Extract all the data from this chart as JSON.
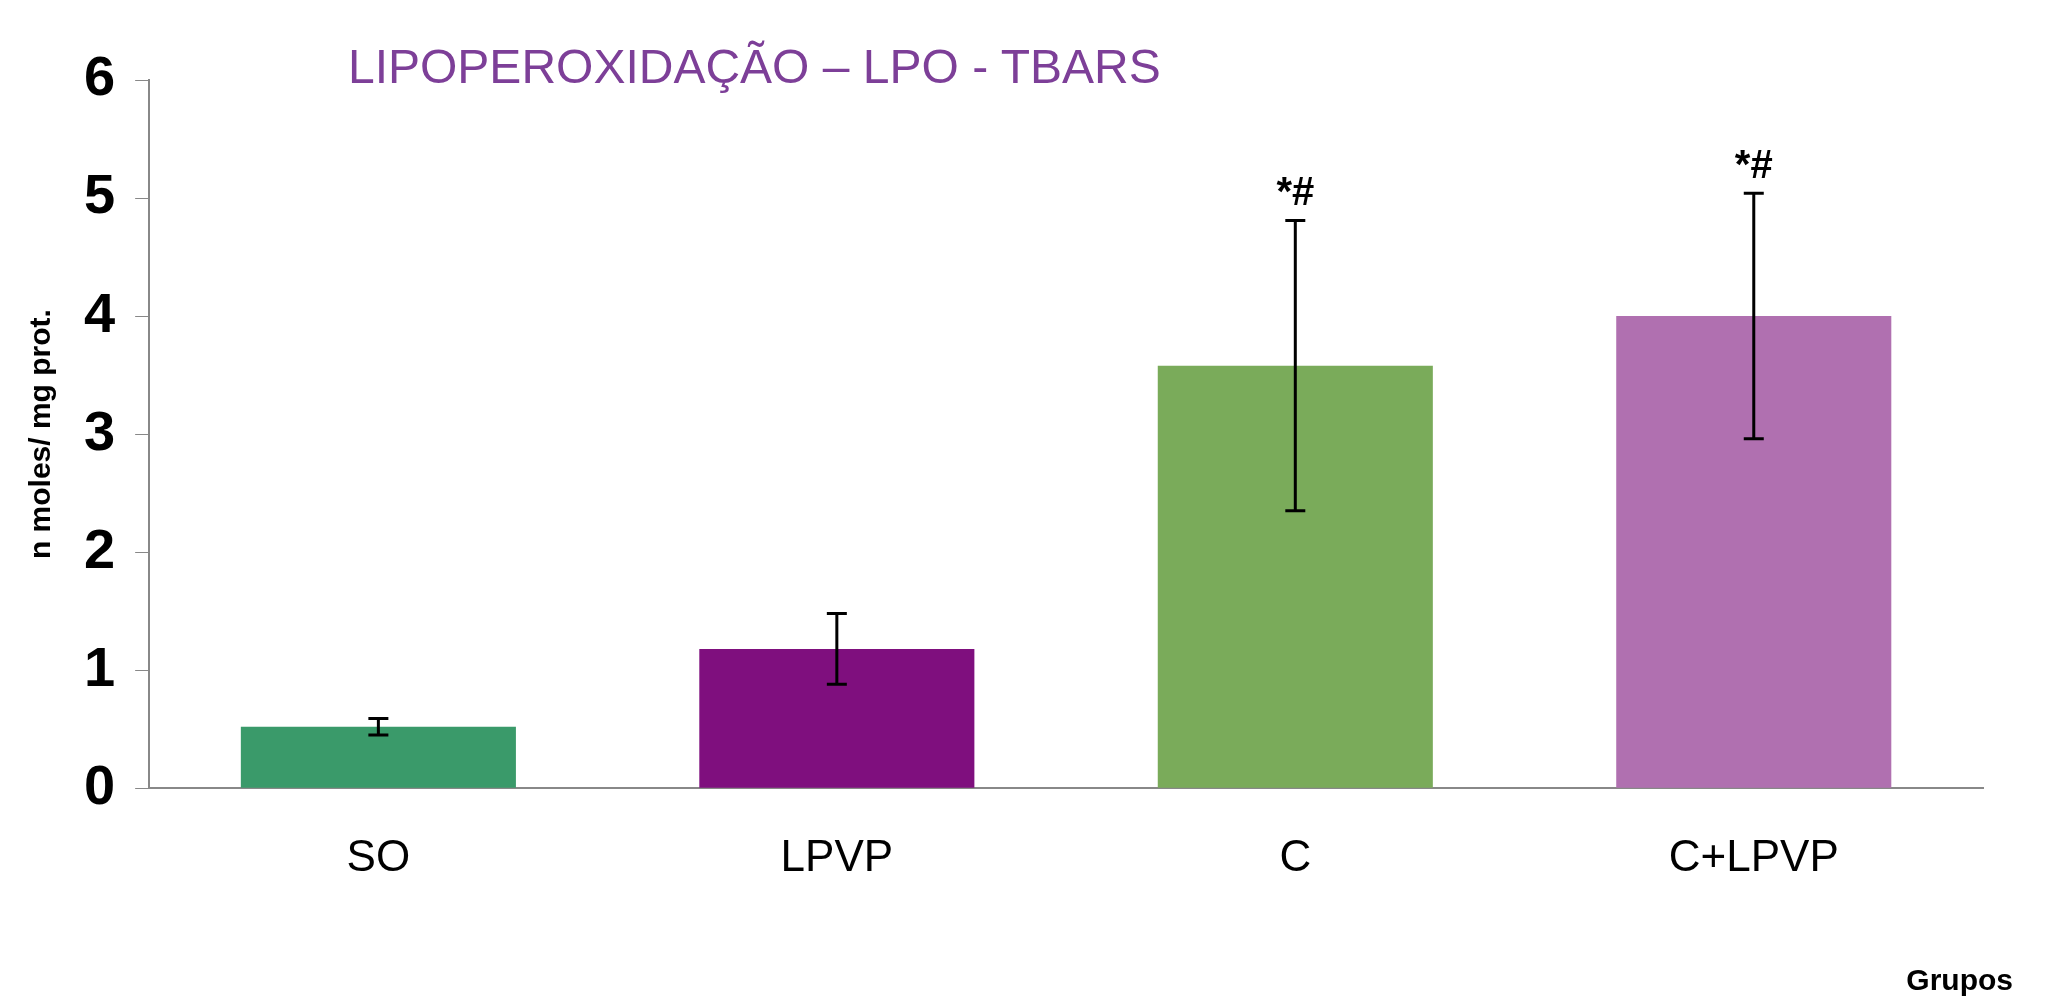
{
  "chart_data": {
    "type": "bar",
    "title": "LIPOPEROXIDAÇÃO – LPO - TBARS",
    "xlabel": "Grupos",
    "ylabel": "n moles/ mg prot.",
    "categories": [
      "SO",
      "LPVP",
      "C",
      "C+LPVP"
    ],
    "values": [
      0.52,
      1.18,
      3.58,
      4.0
    ],
    "errors": [
      0.07,
      0.3,
      1.23,
      1.04
    ],
    "colors": [
      "#3a9a6a",
      "#7f0f7e",
      "#7aab5a",
      "#b070b0"
    ],
    "ylim": [
      0,
      6
    ],
    "yticks": [
      0,
      1,
      2,
      3,
      4,
      5,
      6
    ],
    "grid": false,
    "legend": false,
    "annotations": [
      {
        "text": "*#",
        "x": "C",
        "y": 4.8
      },
      {
        "text": "*#",
        "x": "C+LPVP",
        "y": 5.03
      }
    ]
  }
}
